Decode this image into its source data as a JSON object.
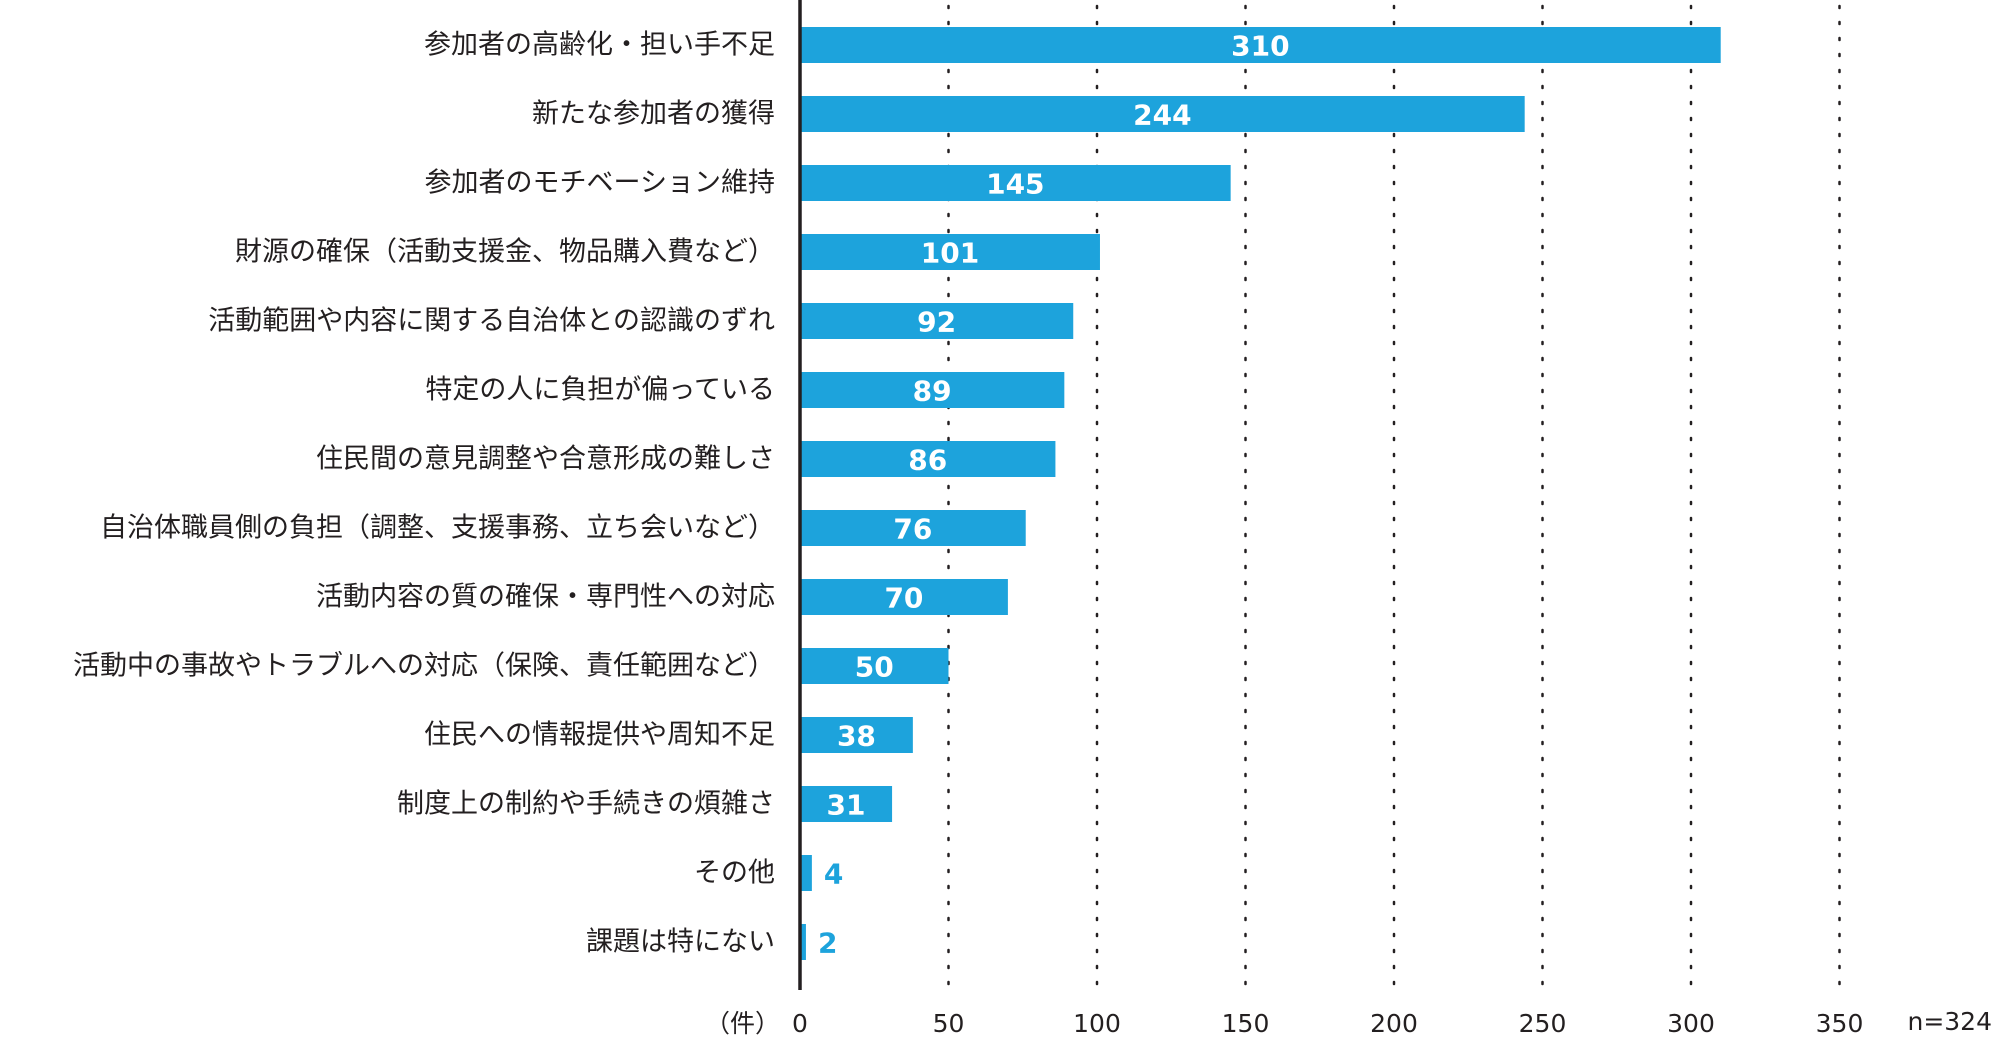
{
  "colors": {
    "bar": "#1da3dc",
    "label_inside": "#ffffff",
    "label_outside": "#1da3dc",
    "text": "#231f20",
    "axis": "#231f20",
    "grid": "#231f20"
  },
  "chart_data": {
    "type": "bar",
    "orientation": "horizontal",
    "categories": [
      "参加者の高齢化・担い手不足",
      "新たな参加者の獲得",
      "参加者のモチベーション維持",
      "財源の確保（活動支援金、物品購入費など）",
      "活動範囲や内容に関する自治体との認識のずれ",
      "特定の人に負担が偏っている",
      "住民間の意見調整や合意形成の難しさ",
      "自治体職員側の負担（調整、支援事務、立ち会いなど）",
      "活動内容の質の確保・専門性への対応",
      "活動中の事故やトラブルへの対応（保険、責任範囲など）",
      "住民への情報提供や周知不足",
      "制度上の制約や手続きの煩雑さ",
      "その他",
      "課題は特にない"
    ],
    "values": [
      310,
      244,
      145,
      101,
      92,
      89,
      86,
      76,
      70,
      50,
      38,
      31,
      4,
      2
    ],
    "xlim": [
      0,
      350
    ],
    "xticks": [
      0,
      50,
      100,
      150,
      200,
      250,
      300,
      350
    ],
    "tick_labels": [
      "0",
      "50",
      "100",
      "150",
      "200",
      "250",
      "300",
      "350"
    ],
    "xunit_label": "（件）",
    "note": "n=324",
    "grid": "dotted vertical",
    "legend": "none"
  }
}
